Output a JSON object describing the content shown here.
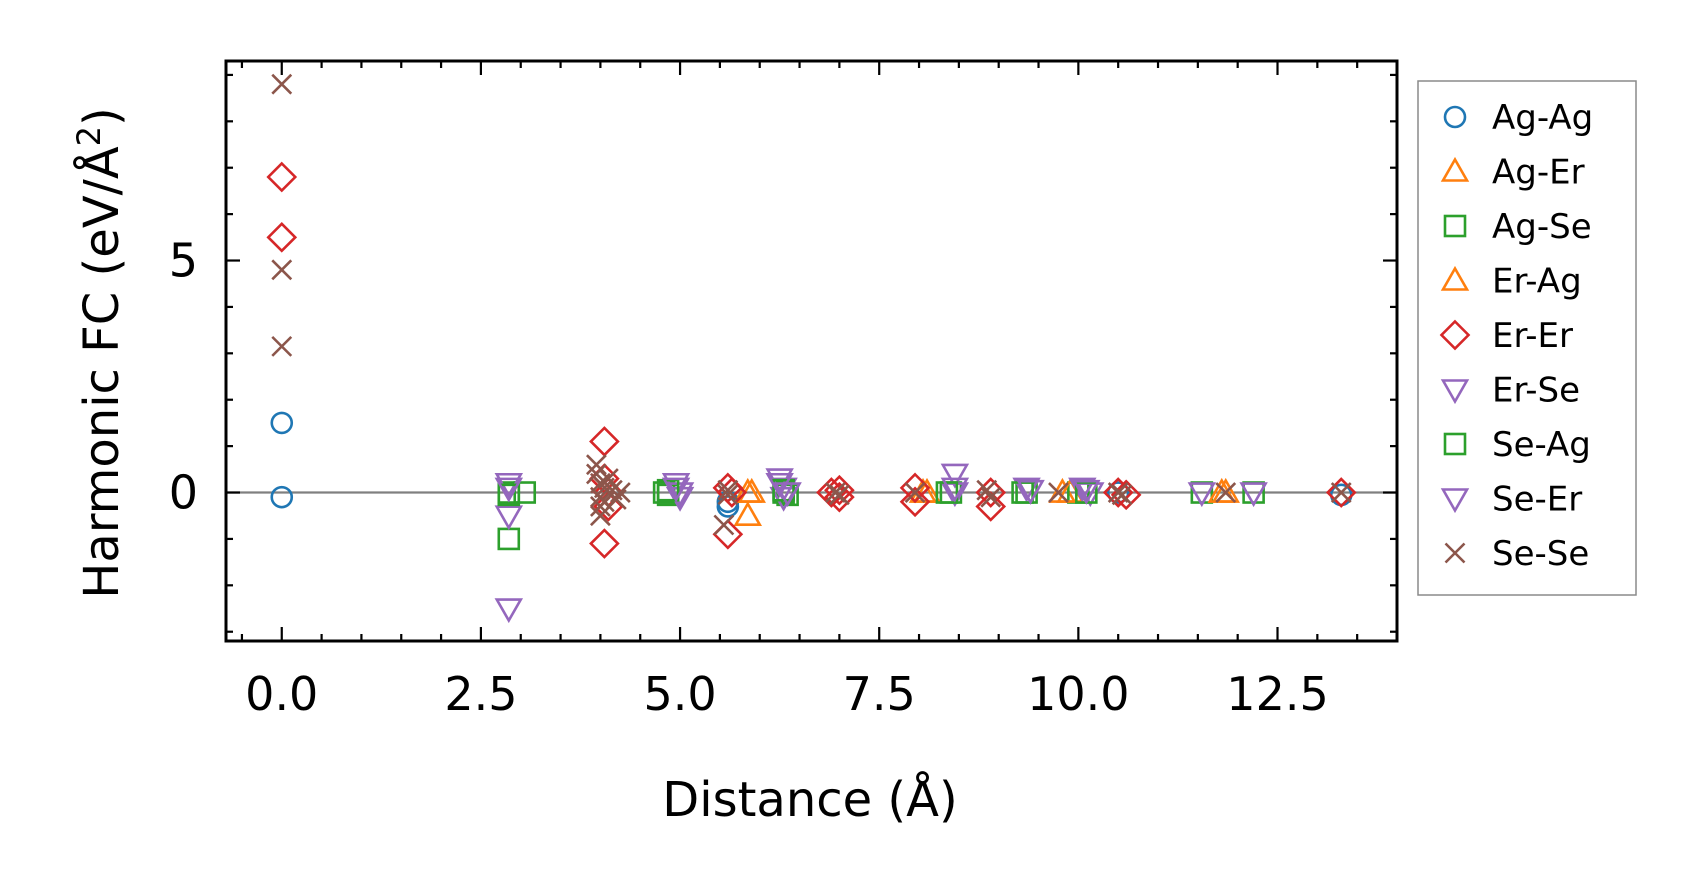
{
  "chart_data": {
    "type": "scatter",
    "title": "",
    "xlabel": "Distance (Å)",
    "ylabel_main": "Harmonic FC (eV/Å",
    "ylabel_sup": "2",
    "ylabel_close": ")",
    "xlim": [
      -0.7,
      14.0
    ],
    "ylim": [
      -3.2,
      9.3
    ],
    "x_ticks": [
      0.0,
      2.5,
      5.0,
      7.5,
      10.0,
      12.5
    ],
    "x_tick_labels": [
      "0.0",
      "2.5",
      "5.0",
      "7.5",
      "10.0",
      "12.5"
    ],
    "x_minor_step": 0.5,
    "y_ticks": [
      0,
      5
    ],
    "y_tick_labels": [
      "0",
      "5"
    ],
    "y_minor_step": 1,
    "zero_line": true,
    "grid": false,
    "legend_position": "outside-right",
    "series": [
      {
        "name": "Ag-Ag",
        "marker": "circle",
        "color": "#1f77b4",
        "points": [
          [
            0.0,
            1.5
          ],
          [
            0.0,
            -0.1
          ],
          [
            5.6,
            -0.3
          ],
          [
            5.6,
            -0.2
          ],
          [
            10.5,
            0.0
          ],
          [
            13.3,
            -0.05
          ]
        ]
      },
      {
        "name": "Ag-Er",
        "marker": "triangle-up",
        "color": "#ff7f0e",
        "points": [
          [
            5.85,
            0.0
          ],
          [
            5.85,
            -0.5
          ],
          [
            8.05,
            0.0
          ],
          [
            9.8,
            0.0
          ],
          [
            11.85,
            0.0
          ]
        ]
      },
      {
        "name": "Ag-Se",
        "marker": "square",
        "color": "#2ca02c",
        "points": [
          [
            2.85,
            -1.0
          ],
          [
            2.85,
            0.0
          ],
          [
            3.05,
            0.0
          ],
          [
            4.8,
            0.0
          ],
          [
            4.85,
            -0.05
          ],
          [
            6.3,
            0.0
          ],
          [
            6.35,
            -0.05
          ],
          [
            8.4,
            0.0
          ],
          [
            9.35,
            0.0
          ],
          [
            10.0,
            0.0
          ],
          [
            11.55,
            0.0
          ],
          [
            12.2,
            0.0
          ]
        ]
      },
      {
        "name": "Er-Ag",
        "marker": "triangle-up",
        "color": "#ff7f0e",
        "points": [
          [
            5.9,
            0.0
          ],
          [
            8.1,
            0.0
          ],
          [
            9.9,
            0.0
          ],
          [
            11.8,
            0.0
          ]
        ]
      },
      {
        "name": "Er-Er",
        "marker": "diamond",
        "color": "#d62728",
        "points": [
          [
            0.0,
            6.8
          ],
          [
            0.0,
            5.5
          ],
          [
            4.05,
            1.1
          ],
          [
            4.05,
            -1.1
          ],
          [
            4.05,
            0.3
          ],
          [
            4.1,
            0.0
          ],
          [
            4.1,
            -0.3
          ],
          [
            5.6,
            0.1
          ],
          [
            5.6,
            -0.9
          ],
          [
            5.65,
            0.0
          ],
          [
            6.9,
            0.0
          ],
          [
            7.0,
            0.05
          ],
          [
            7.0,
            -0.1
          ],
          [
            7.95,
            0.1
          ],
          [
            7.95,
            -0.2
          ],
          [
            8.9,
            0.0
          ],
          [
            8.9,
            -0.3
          ],
          [
            10.5,
            0.0
          ],
          [
            10.6,
            -0.05
          ],
          [
            13.3,
            0.0
          ]
        ]
      },
      {
        "name": "Er-Se",
        "marker": "triangle-down",
        "color": "#9467bd",
        "points": [
          [
            2.85,
            0.2
          ],
          [
            2.85,
            -0.5
          ],
          [
            2.85,
            -2.5
          ],
          [
            4.95,
            0.2
          ],
          [
            5.0,
            0.0
          ],
          [
            5.0,
            -0.1
          ],
          [
            6.25,
            0.3
          ],
          [
            6.3,
            0.1
          ],
          [
            6.3,
            -0.1
          ],
          [
            8.45,
            0.4
          ],
          [
            8.45,
            0.0
          ],
          [
            9.35,
            0.1
          ],
          [
            10.05,
            0.1
          ],
          [
            10.15,
            0.0
          ],
          [
            11.55,
            0.0
          ],
          [
            12.2,
            0.0
          ]
        ]
      },
      {
        "name": "Se-Ag",
        "marker": "square",
        "color": "#2ca02c",
        "points": [
          [
            2.85,
            -0.05
          ],
          [
            4.85,
            0.05
          ],
          [
            6.3,
            0.05
          ],
          [
            8.35,
            0.0
          ],
          [
            9.3,
            0.0
          ],
          [
            10.1,
            0.0
          ]
        ]
      },
      {
        "name": "Se-Er",
        "marker": "triangle-down",
        "color": "#9467bd",
        "points": [
          [
            2.85,
            0.1
          ],
          [
            4.95,
            0.1
          ],
          [
            6.25,
            0.2
          ],
          [
            6.35,
            0.0
          ],
          [
            8.45,
            0.1
          ],
          [
            9.4,
            0.05
          ],
          [
            10.1,
            0.05
          ]
        ]
      },
      {
        "name": "Se-Se",
        "marker": "x",
        "color": "#8c564b",
        "points": [
          [
            0.0,
            8.8
          ],
          [
            0.0,
            4.8
          ],
          [
            0.0,
            3.15
          ],
          [
            3.95,
            0.6
          ],
          [
            3.95,
            0.4
          ],
          [
            4.0,
            0.2
          ],
          [
            4.0,
            -0.1
          ],
          [
            4.0,
            -0.3
          ],
          [
            4.0,
            -0.5
          ],
          [
            4.05,
            0.1
          ],
          [
            4.05,
            -0.2
          ],
          [
            4.1,
            0.3
          ],
          [
            4.15,
            0.05
          ],
          [
            4.2,
            -0.15
          ],
          [
            4.25,
            0.0
          ],
          [
            5.55,
            -0.7
          ],
          [
            5.6,
            0.05
          ],
          [
            5.6,
            -0.05
          ],
          [
            6.95,
            0.0
          ],
          [
            7.0,
            -0.05
          ],
          [
            7.95,
            0.0
          ],
          [
            8.85,
            0.05
          ],
          [
            8.9,
            -0.1
          ],
          [
            9.75,
            0.0
          ],
          [
            10.5,
            0.0
          ],
          [
            10.55,
            -0.05
          ],
          [
            11.85,
            0.0
          ],
          [
            13.3,
            0.0
          ]
        ]
      }
    ]
  }
}
